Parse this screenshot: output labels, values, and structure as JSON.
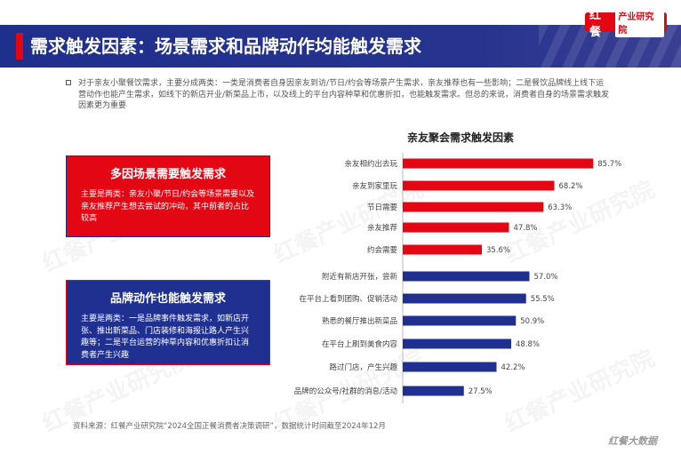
{
  "header": {
    "title": "需求触发因素：场景需求和品牌动作均能触发需求",
    "logo_mark": "红餐",
    "logo_text": "产业研究院"
  },
  "intro": "对于亲友小聚餐饮需求，主要分成两类：一类是消费者自身因亲友到访/节日/约会等场景产生需求，亲友推荐也有一些影响；二是餐饮品牌线上线下运营动作也能产生需求，如线下的新店开业/新菜品上市，以及线上的平台内容种草和优惠折扣，也能触发需求。但总的来说，消费者自身的场景需求触发因素更为重要",
  "cards": {
    "scene": {
      "title": "多因场景需要触发需求",
      "body": "主要是两类：亲友小聚/节日/约会等场景需要以及亲友推荐产生想去尝试的冲动，其中前者的占比较高"
    },
    "brand": {
      "title": "品牌动作也能触发需求",
      "body": "主要是两类：一是品牌事件触发需求，如新店开张、推出新菜品、门店装修和海报让路人产生兴趣等；二是平台运营的种草内容和优惠折扣让消费者产生兴趣"
    }
  },
  "chart_data": {
    "type": "bar",
    "orientation": "horizontal",
    "title": "亲友聚会需求触发因素",
    "categories": [
      "亲友相约出去玩",
      "亲友到家里玩",
      "节日需要",
      "亲友推荐",
      "约会需要",
      "附近有新店开张，尝新",
      "在平台上看到团购、促销活动",
      "熟悉的餐厅推出新菜品",
      "在平台上刷到美食内容",
      "路过门店，产生兴趣",
      "品牌的公众号/社群的消息/活动"
    ],
    "values": [
      85.7,
      68.2,
      63.3,
      47.8,
      35.6,
      57.0,
      55.5,
      50.9,
      48.8,
      42.2,
      27.5
    ],
    "value_labels": [
      "85.7%",
      "68.2%",
      "63.3%",
      "47.8%",
      "35.6%",
      "57.0%",
      "55.5%",
      "50.9%",
      "48.8%",
      "42.2%",
      "27.5%"
    ],
    "groups": [
      {
        "color": "#e30613",
        "count": 5
      },
      {
        "color": "#1f3091",
        "count": 6
      }
    ],
    "xlim": [
      0,
      100
    ],
    "grid": false,
    "legend": "none"
  },
  "source": "资料来源：红餐产业研究院“2024全国正餐消费者决策调研”，数据统计时间截至2024年12月",
  "footer_logo": "红餐大数据",
  "watermark": "红餐产业研究院"
}
